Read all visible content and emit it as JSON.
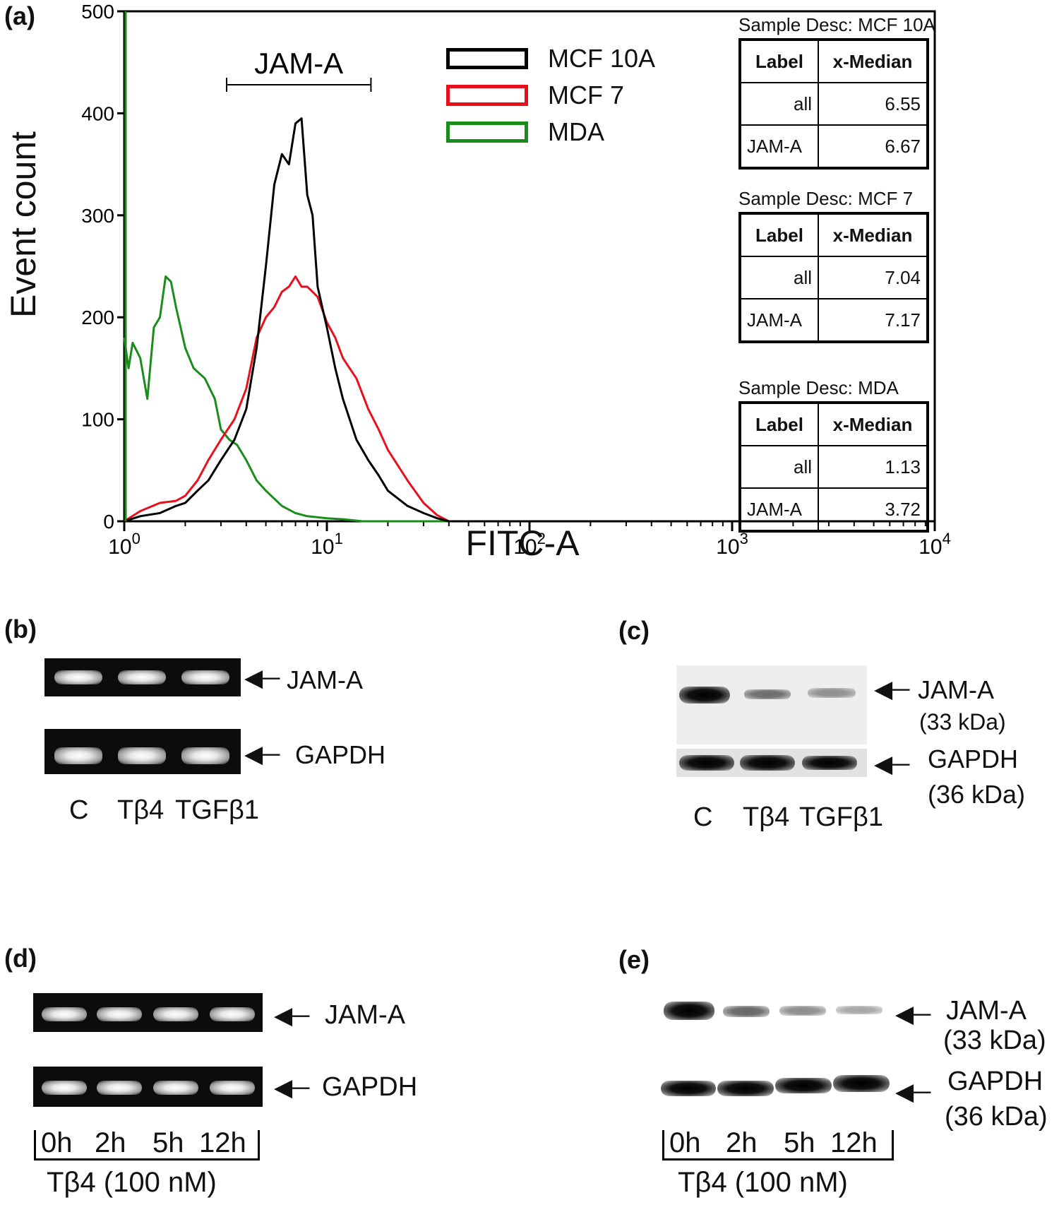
{
  "panels": {
    "a": "(a)",
    "b": "(b)",
    "c": "(c)",
    "d": "(d)",
    "e": "(e)"
  },
  "chart_data": {
    "type": "line",
    "xlabel": "FITC-A",
    "ylabel": "Event count",
    "xscale": "log",
    "xlim": [
      1,
      10000
    ],
    "ylim": [
      0,
      500
    ],
    "yticks": [
      0,
      100,
      200,
      300,
      400,
      500
    ],
    "xticks": [
      1,
      10,
      100,
      1000,
      10000
    ],
    "xtick_labels": [
      {
        "base": "10",
        "exp": "0"
      },
      {
        "base": "10",
        "exp": "1"
      },
      {
        "base": "10",
        "exp": "2"
      },
      {
        "base": "10",
        "exp": "3"
      },
      {
        "base": "10",
        "exp": "4"
      }
    ],
    "gate_label": "JAM-A",
    "gate_range": [
      3.2,
      16.5
    ],
    "legend_position": "top-center",
    "series": [
      {
        "name": "MCF 10A",
        "color": "#000000",
        "x": [
          1.0,
          1.2,
          1.5,
          1.8,
          2.0,
          2.3,
          2.6,
          3.0,
          3.5,
          4.0,
          4.5,
          5.0,
          5.5,
          6.0,
          6.5,
          7.0,
          7.5,
          8.0,
          8.5,
          9.0,
          10.0,
          11.0,
          12.0,
          14.0,
          16.0,
          18.0,
          20.0,
          25.0,
          30.0,
          35.0,
          40.0,
          10000.0
        ],
        "y": [
          0,
          5,
          8,
          15,
          18,
          30,
          40,
          60,
          80,
          110,
          170,
          250,
          330,
          360,
          350,
          390,
          395,
          320,
          300,
          230,
          190,
          150,
          120,
          80,
          60,
          45,
          30,
          15,
          8,
          3,
          0,
          0
        ]
      },
      {
        "name": "MCF 7",
        "color": "#e8101c",
        "x": [
          1.0,
          1.2,
          1.5,
          1.8,
          2.0,
          2.3,
          2.6,
          3.0,
          3.5,
          4.0,
          4.5,
          5.0,
          5.5,
          6.0,
          6.5,
          7.0,
          7.5,
          8.0,
          8.5,
          9.0,
          10.0,
          11.0,
          12.0,
          14.0,
          16.0,
          18.0,
          20.0,
          25.0,
          30.0,
          35.0,
          40.0,
          10000.0
        ],
        "y": [
          0,
          10,
          18,
          20,
          25,
          40,
          60,
          80,
          100,
          130,
          180,
          200,
          210,
          225,
          230,
          240,
          230,
          230,
          225,
          220,
          195,
          180,
          160,
          140,
          110,
          90,
          70,
          40,
          18,
          6,
          0,
          0
        ]
      },
      {
        "name": "MDA",
        "color": "#1a8c1a",
        "x": [
          1.0,
          1.05,
          1.1,
          1.2,
          1.3,
          1.4,
          1.5,
          1.6,
          1.7,
          1.8,
          2.0,
          2.2,
          2.5,
          2.8,
          3.0,
          3.3,
          3.6,
          4.0,
          4.5,
          5.0,
          6.0,
          7.0,
          8.0,
          10.0,
          12.0,
          15.0,
          10000.0
        ],
        "y": [
          180,
          150,
          175,
          160,
          120,
          190,
          200,
          240,
          235,
          210,
          170,
          150,
          140,
          120,
          90,
          80,
          75,
          60,
          40,
          30,
          15,
          8,
          5,
          3,
          2,
          0,
          0
        ]
      }
    ],
    "stat_tables": [
      {
        "title": "Sample Desc: MCF 10A",
        "header": [
          "Label",
          "x-Median"
        ],
        "rows": [
          [
            "all",
            "6.55"
          ],
          [
            "JAM-A",
            "6.67"
          ]
        ]
      },
      {
        "title": "Sample Desc: MCF 7",
        "header": [
          "Label",
          "x-Median"
        ],
        "rows": [
          [
            "all",
            "7.04"
          ],
          [
            "JAM-A",
            "7.17"
          ]
        ]
      },
      {
        "title": "Sample Desc: MDA",
        "header": [
          "Label",
          "x-Median"
        ],
        "rows": [
          [
            "all",
            "1.13"
          ],
          [
            "JAM-A",
            "3.72"
          ]
        ]
      }
    ]
  },
  "gel_b": {
    "bands": [
      "JAM-A",
      "GAPDH"
    ],
    "lanes": [
      "C",
      "Tβ4",
      "TGFβ1"
    ]
  },
  "blot_c": {
    "bands": [
      {
        "name": "JAM-A",
        "mw": "(33 kDa)"
      },
      {
        "name": "GAPDH",
        "mw": "(36 kDa)"
      }
    ],
    "lanes": [
      "C",
      "Tβ4",
      "TGFβ1"
    ]
  },
  "gel_d": {
    "bands": [
      "JAM-A",
      "GAPDH"
    ],
    "lanes": [
      "0h",
      "2h",
      "5h",
      "12h"
    ],
    "treatment": "Tβ4 (100 nM)"
  },
  "blot_e": {
    "bands": [
      {
        "name": "JAM-A",
        "mw": "(33 kDa)"
      },
      {
        "name": "GAPDH",
        "mw": "(36 kDa)"
      }
    ],
    "lanes": [
      "0h",
      "2h",
      "5h",
      "12h"
    ],
    "treatment": "Tβ4 (100 nM)"
  }
}
